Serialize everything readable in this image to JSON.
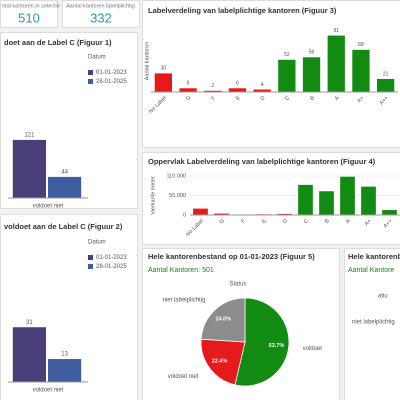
{
  "kpis": [
    {
      "label": "ntal kantoren in selectie",
      "value": 510
    },
    {
      "label": "Aantal kantoren labelplichtig",
      "value": 332
    }
  ],
  "chart_data": [
    {
      "type": "grouped-bar",
      "title": "doet aan de Label C (Figuur 1)",
      "legend_title": "Datum",
      "categories": [
        "voldoet niet"
      ],
      "series": [
        {
          "name": "01-01-2023",
          "color": "#4b3f7a",
          "values": [
            121
          ]
        },
        {
          "name": "28-01-2025",
          "color": "#3d5d9f",
          "values": [
            44
          ]
        }
      ],
      "ylim": [
        0,
        250
      ]
    },
    {
      "type": "grouped-bar",
      "title": "voldoet aan de Label C (Figuur 2)",
      "legend_title": "Datum",
      "categories": [
        "voldoet niet"
      ],
      "series": [
        {
          "name": "01-01-2023",
          "color": "#4b3f7a",
          "values": [
            31
          ]
        },
        {
          "name": "28-01-2025",
          "color": "#3d5d9f",
          "values": [
            13
          ]
        }
      ],
      "ylim": [
        0,
        60
      ]
    },
    {
      "type": "bar",
      "title": "Labelverdeling van labelplichtige kantoren (Figuur 3)",
      "y_label": "Aantal kantoren",
      "categories": [
        "No Label",
        "G",
        "F",
        "E",
        "D",
        "C",
        "B",
        "A",
        "A+",
        "A++"
      ],
      "values": [
        30,
        6,
        2,
        6,
        4,
        52,
        56,
        91,
        68,
        21
      ],
      "colors": [
        "#e51a1a",
        "#e51a1a",
        "#e51a1a",
        "#e51a1a",
        "#e51a1a",
        "#118b11",
        "#118b11",
        "#118b11",
        "#118b11",
        "#118b11"
      ],
      "ylim": [
        0,
        100
      ],
      "data_labels": true
    },
    {
      "type": "bar",
      "title": "Oppervlak Labelverdeling van labelplichtige kantoren (Figuur 4)",
      "y_label": "Vierkante meter",
      "categories": [
        "No Label",
        "G",
        "F",
        "E",
        "D",
        "C",
        "B",
        "A",
        "A+",
        "A++"
      ],
      "values": [
        18000,
        4000,
        1500,
        2000,
        3000,
        85000,
        67000,
        108000,
        80000,
        14000
      ],
      "colors": [
        "#e51a1a",
        "#e51a1a",
        "#e51a1a",
        "#e51a1a",
        "#e51a1a",
        "#118b11",
        "#118b11",
        "#118b11",
        "#118b11",
        "#118b11"
      ],
      "ylim": [
        0,
        110000
      ],
      "yticks": [
        0,
        {
          "value": 55000,
          "label": "55.000"
        },
        {
          "value": 110000,
          "label": "110.000"
        }
      ],
      "data_labels": false
    },
    {
      "type": "pie",
      "title": "Hele kantorenbestand op 01-01-2023 (Figuur 5)",
      "subtitle": "Aantal Kantoren: 501",
      "legend_title": "Status",
      "categories": [
        "voldoet",
        "voldoet niet",
        "niet labelplichtig"
      ],
      "values": [
        53.7,
        22.4,
        24.0
      ],
      "value_labels": [
        "53.7%",
        "22.4%",
        "24.0%"
      ],
      "colors": [
        "#118b11",
        "#e51a1a",
        "#8c8c8c"
      ]
    }
  ],
  "cropped_panel": {
    "title": "Hele kantorenbes",
    "subtitle": "Aantal Kantore",
    "fragment": "altu",
    "label": "niet labelplichtig"
  }
}
